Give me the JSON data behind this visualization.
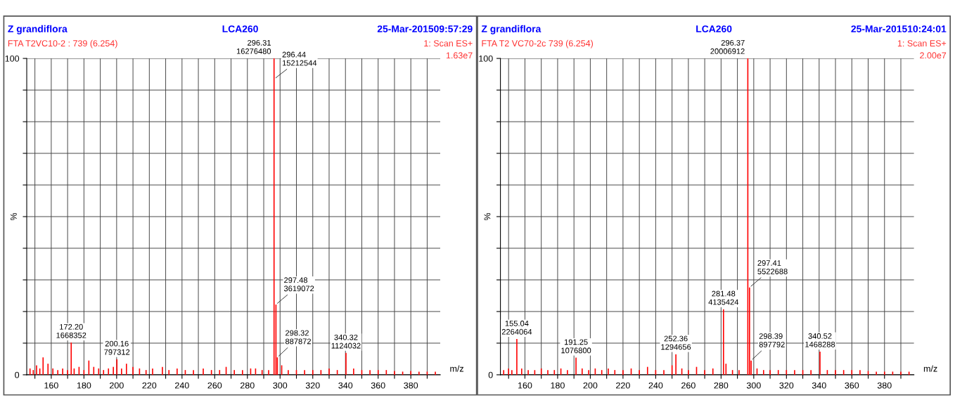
{
  "chart_data": [
    {
      "type": "bar",
      "title": "Z grandiflora",
      "subtitle": "FTA T2VC10-2 : 739 (6.254)",
      "xlabel": "m/z",
      "ylabel": "%",
      "x": [
        147,
        149,
        151,
        153,
        155,
        158,
        161,
        164,
        167,
        170,
        172.2,
        174,
        177,
        180,
        183,
        186,
        189,
        192,
        195,
        198,
        200.16,
        203,
        206,
        210,
        214,
        218,
        222,
        228,
        232,
        237,
        242,
        247,
        253,
        258,
        263,
        267,
        272,
        277,
        282,
        285,
        289,
        293,
        296.31,
        296.44,
        297.48,
        298.32,
        301,
        305,
        310,
        315,
        320,
        325,
        330,
        335,
        340.32,
        345,
        350,
        355,
        360,
        365,
        370,
        375,
        380,
        385,
        390,
        395
      ],
      "series": [
        {
          "color": "#ff0000",
          "values": [
            2,
            1.5,
            3,
            2,
            5.5,
            3.5,
            2,
            1.5,
            2,
            1.5,
            10.2,
            2,
            2.5,
            1.5,
            4.5,
            2.5,
            2,
            1.5,
            2,
            2.5,
            4.9,
            2,
            3.5,
            2.5,
            2,
            1.5,
            2,
            2.5,
            1.5,
            2,
            1.5,
            1.5,
            2,
            1.5,
            1.5,
            2.5,
            1.5,
            1.5,
            2,
            2,
            1.5,
            1.5,
            100,
            null,
            22.2,
            5.5,
            3,
            1.5,
            1.5,
            1.5,
            1.5,
            1.5,
            2,
            1.5,
            6.9,
            2,
            1.5,
            1.5,
            1.5,
            1.5,
            1.2,
            1,
            1.2,
            1,
            1,
            1
          ]
        }
      ],
      "xlim": [
        145,
        398
      ],
      "ylim": [
        0,
        100
      ],
      "xticks": [
        {
          "value": 150,
          "label": null
        },
        160,
        {
          "value": 170,
          "label": null
        },
        180,
        {
          "value": 190,
          "label": null
        },
        200,
        {
          "value": 210,
          "label": null
        },
        220,
        {
          "value": 230,
          "label": null
        },
        240,
        {
          "value": 250,
          "label": null
        },
        260,
        {
          "value": 270,
          "label": null
        },
        280,
        {
          "value": 290,
          "label": null
        },
        300,
        {
          "value": 310,
          "label": null
        },
        320,
        {
          "value": 330,
          "label": null
        },
        340,
        {
          "value": 350,
          "label": null
        },
        360,
        {
          "value": 370,
          "label": null
        },
        380,
        {
          "value": 390,
          "label": null
        }
      ],
      "yticks": [
        0,
        {
          "value": 10,
          "label": null
        },
        {
          "value": 20,
          "label": null
        },
        {
          "value": 30,
          "label": null
        },
        {
          "value": 40,
          "label": null
        },
        {
          "value": 50,
          "label": null
        },
        {
          "value": 60,
          "label": null
        },
        {
          "value": 70,
          "label": null
        },
        {
          "value": 80,
          "label": null
        },
        {
          "value": 90,
          "label": null
        },
        100
      ],
      "grid": true,
      "annotations": [
        "LCA260",
        "25-Mar-201509:57:29",
        "1: Scan ES+",
        "1.63e7",
        {
          "text": "296.31\n16276480",
          "x": 296.31,
          "y": 100
        },
        {
          "text": "296.44\n15212544",
          "x": 296.44,
          "y": 93.5
        },
        {
          "text": "297.48\n3619072",
          "x": 297.48,
          "y": 22.2
        },
        {
          "text": "298.32\n887872",
          "x": 298.32,
          "y": 5.5
        },
        {
          "text": "172.20\n1668352",
          "x": 172.2,
          "y": 10.2
        },
        {
          "text": "200.16\n797312",
          "x": 200.16,
          "y": 4.9
        },
        {
          "text": "340.32\n1124032",
          "x": 340.32,
          "y": 6.9
        }
      ]
    },
    {
      "type": "bar",
      "title": "Z grandiflora",
      "subtitle": "FTA T2 VC70-2c 739 (6.254)",
      "xlabel": "m/z",
      "ylabel": "%",
      "x": [
        147,
        150,
        152,
        155.04,
        158,
        162,
        166,
        170,
        174,
        178,
        182,
        186,
        191.25,
        195,
        199,
        203,
        207,
        211,
        215,
        220,
        225,
        230,
        235,
        240,
        245,
        250,
        252.36,
        256,
        260,
        265,
        270,
        275,
        281.48,
        283,
        287,
        291,
        296.37,
        297.41,
        298.39,
        302,
        306,
        310,
        315,
        320,
        325,
        330,
        335,
        340.52,
        345,
        350,
        355,
        360,
        365,
        370,
        375,
        380,
        385,
        390,
        395
      ],
      "series": [
        {
          "color": "#ff0000",
          "values": [
            1.5,
            2,
            1.5,
            11.3,
            2,
            1.5,
            1.5,
            2,
            1.5,
            1.5,
            2,
            1.5,
            5.4,
            2,
            1.5,
            2,
            1.5,
            2,
            1.5,
            1.5,
            2,
            1.5,
            2.5,
            1.5,
            1.5,
            3,
            6.5,
            2,
            1.5,
            2.5,
            1.5,
            2,
            20.7,
            3.5,
            1.5,
            1.5,
            100,
            27.6,
            4.5,
            2,
            1.5,
            1.5,
            1.5,
            1.5,
            1.5,
            1.5,
            1.5,
            7.3,
            1.5,
            1.5,
            1.5,
            1.5,
            1.5,
            1.2,
            1,
            1,
            1,
            1,
            1
          ]
        }
      ],
      "xlim": [
        145,
        398
      ],
      "ylim": [
        0,
        100
      ],
      "xticks": [
        {
          "value": 150,
          "label": null
        },
        160,
        {
          "value": 170,
          "label": null
        },
        180,
        {
          "value": 190,
          "label": null
        },
        200,
        {
          "value": 210,
          "label": null
        },
        220,
        {
          "value": 230,
          "label": null
        },
        240,
        {
          "value": 250,
          "label": null
        },
        260,
        {
          "value": 270,
          "label": null
        },
        280,
        {
          "value": 290,
          "label": null
        },
        300,
        {
          "value": 310,
          "label": null
        },
        320,
        {
          "value": 330,
          "label": null
        },
        340,
        {
          "value": 350,
          "label": null
        },
        360,
        {
          "value": 370,
          "label": null
        },
        380,
        {
          "value": 390,
          "label": null
        }
      ],
      "yticks": [
        0,
        {
          "value": 10,
          "label": null
        },
        {
          "value": 20,
          "label": null
        },
        {
          "value": 30,
          "label": null
        },
        {
          "value": 40,
          "label": null
        },
        {
          "value": 50,
          "label": null
        },
        {
          "value": 60,
          "label": null
        },
        {
          "value": 70,
          "label": null
        },
        {
          "value": 80,
          "label": null
        },
        {
          "value": 90,
          "label": null
        },
        100
      ],
      "grid": true,
      "annotations": [
        "LCA260",
        "25-Mar-201510:24:01",
        "1: Scan ES+",
        "2.00e7",
        {
          "text": "296.37\n20006912",
          "x": 296.37,
          "y": 100
        },
        {
          "text": "297.41\n5522688",
          "x": 297.41,
          "y": 27.6
        },
        {
          "text": "298.39\n897792",
          "x": 298.39,
          "y": 4.5
        },
        {
          "text": "281.48\n4135424",
          "x": 281.48,
          "y": 20.7
        },
        {
          "text": "155.04\n2264064",
          "x": 155.04,
          "y": 11.3
        },
        {
          "text": "191.25\n1076800",
          "x": 191.25,
          "y": 5.4
        },
        {
          "text": "252.36\n1294656",
          "x": 252.36,
          "y": 6.5
        },
        {
          "text": "340.52\n1468288",
          "x": 340.52,
          "y": 7.3
        }
      ]
    }
  ]
}
